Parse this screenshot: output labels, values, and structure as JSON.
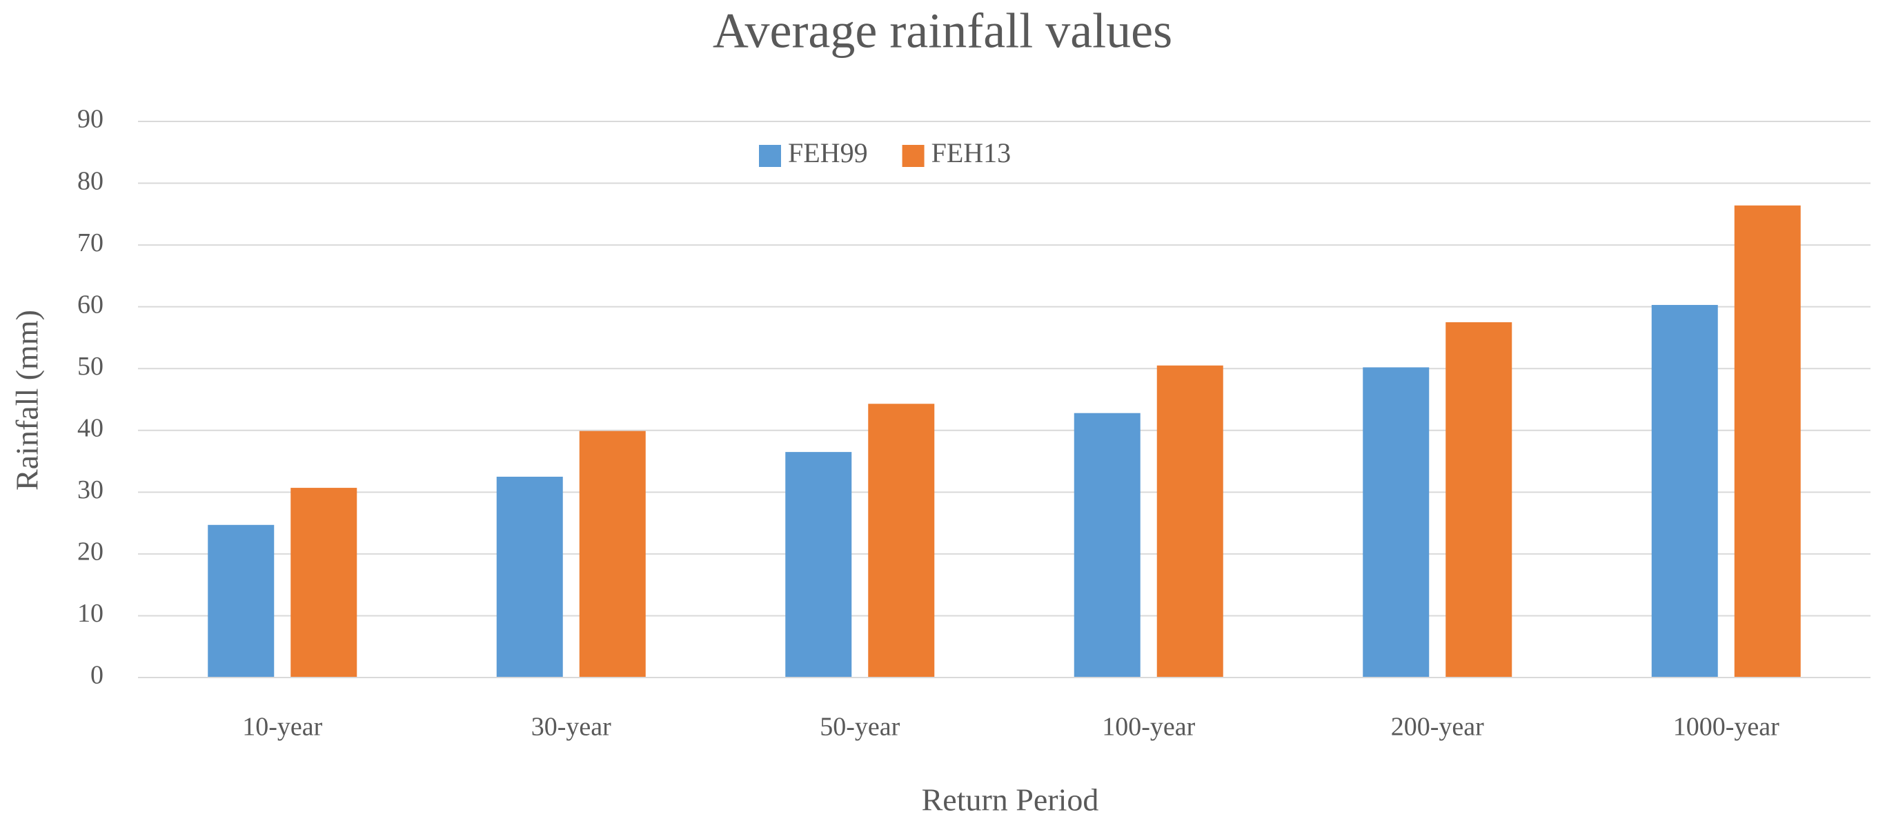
{
  "chart_data": {
    "type": "bar",
    "title": "Average rainfall values",
    "x_label": "Return Period",
    "y_label": "Rainfall (mm)",
    "categories": [
      "10-year",
      "30-year",
      "50-year",
      "100-year",
      "200-year",
      "1000-year"
    ],
    "series": [
      {
        "name": "FEH99",
        "color": "#5b9bd5",
        "values": [
          24.7,
          32.5,
          36.5,
          42.8,
          50.2,
          60.3
        ]
      },
      {
        "name": "FEH13",
        "color": "#ed7d31",
        "values": [
          30.7,
          39.9,
          44.3,
          50.5,
          57.5,
          76.4
        ]
      }
    ],
    "ylim": [
      0,
      90
    ],
    "yticks": [
      0,
      10,
      20,
      30,
      40,
      50,
      60,
      70,
      80,
      90
    ],
    "grid": true,
    "legend": "top"
  }
}
